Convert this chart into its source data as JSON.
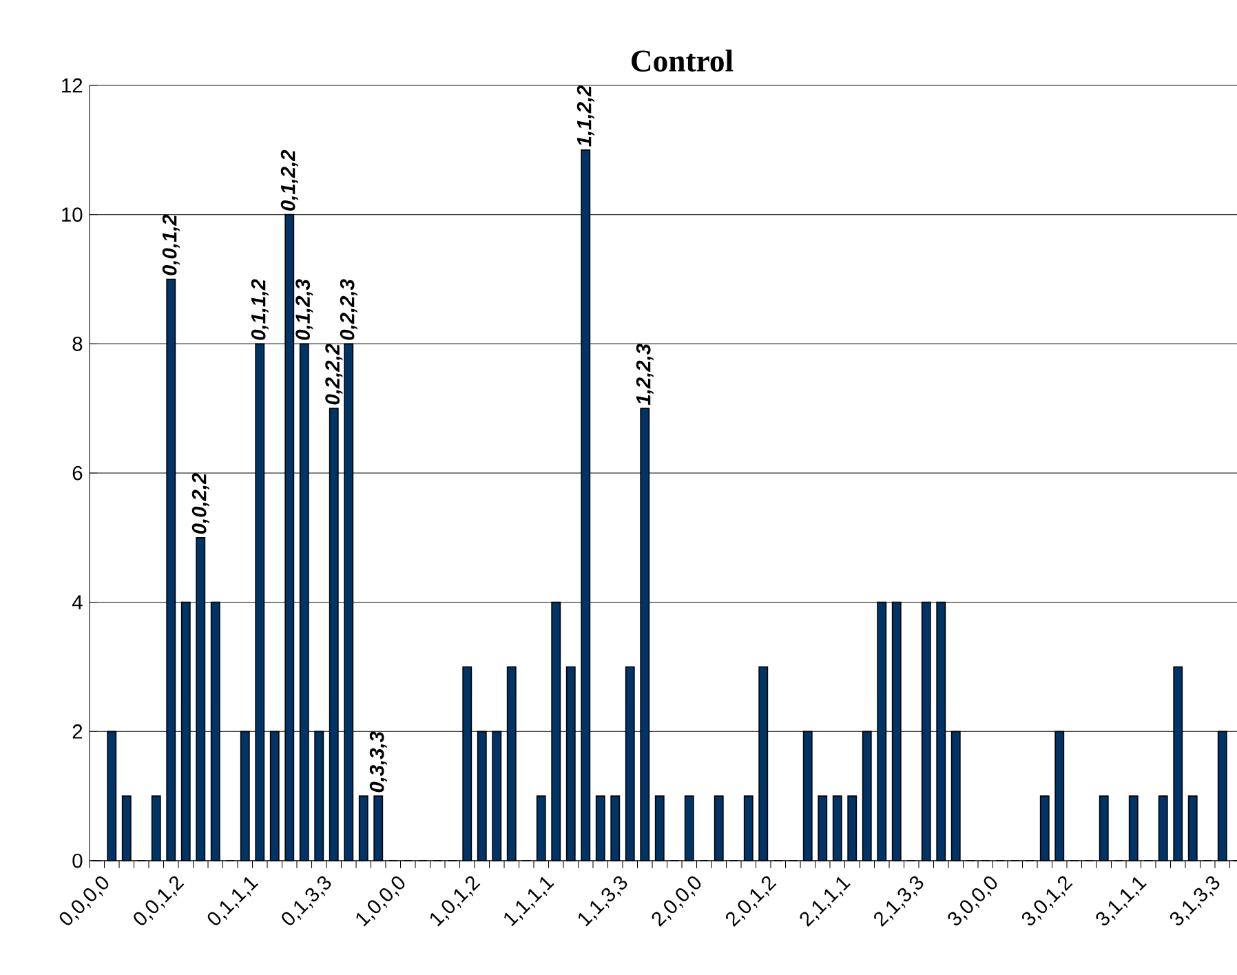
{
  "chart_data": {
    "type": "bar",
    "title": "Control",
    "categories": [
      "0,0,0,0",
      null,
      null,
      null,
      null,
      "0,0,1,2",
      null,
      null,
      null,
      null,
      "0,1,1,1",
      null,
      null,
      null,
      null,
      "0,1,3,3",
      null,
      null,
      null,
      null,
      "1,0,0,0",
      null,
      null,
      null,
      null,
      "1,0,1,2",
      null,
      null,
      null,
      null,
      "1,1,1,1",
      null,
      null,
      null,
      null,
      "1,1,3,3",
      null,
      null,
      null,
      null,
      "2,0,0,0",
      null,
      null,
      null,
      null,
      "2,0,1,2",
      null,
      null,
      null,
      null,
      "2,1,1,1",
      null,
      null,
      null,
      null,
      "2,1,3,3",
      null,
      null,
      null,
      null,
      "3,0,0,0",
      null,
      null,
      null,
      null,
      "3,0,1,2",
      null,
      null,
      null,
      null,
      "3,1,1,1",
      null,
      null,
      null,
      null,
      "3,1,3,3",
      null,
      null,
      null,
      null
    ],
    "values": [
      0,
      2,
      1,
      0,
      1,
      9,
      4,
      5,
      4,
      0,
      2,
      8,
      2,
      10,
      8,
      2,
      7,
      8,
      1,
      1,
      0,
      0,
      0,
      0,
      0,
      3,
      2,
      2,
      3,
      0,
      1,
      4,
      3,
      11,
      1,
      1,
      3,
      7,
      1,
      0,
      1,
      0,
      1,
      0,
      1,
      3,
      0,
      0,
      2,
      1,
      1,
      1,
      2,
      4,
      4,
      0,
      4,
      4,
      2,
      0,
      0,
      0,
      0,
      0,
      1,
      2,
      0,
      0,
      1,
      0,
      1,
      0,
      1,
      3,
      1,
      0,
      2,
      0,
      0,
      0
    ],
    "value_labels": [
      null,
      null,
      null,
      null,
      null,
      "0,0,1,2",
      null,
      "0,0,2,2",
      null,
      null,
      null,
      "0,1,1,2",
      null,
      "0,1,2,2",
      "0,1,2,3",
      null,
      "0,2,2,2",
      "0,2,2,3",
      null,
      "0,3,3,3",
      null,
      null,
      null,
      null,
      null,
      null,
      null,
      null,
      null,
      null,
      null,
      null,
      null,
      "1,1,2,2",
      null,
      null,
      null,
      "1,2,2,3",
      null,
      null,
      null,
      null,
      null,
      null,
      null,
      null,
      null,
      null,
      null,
      null,
      null,
      null,
      null,
      null,
      null,
      null,
      null,
      null,
      null,
      null,
      null,
      null,
      null,
      null,
      null,
      null,
      null,
      null,
      null,
      null,
      null,
      null,
      null,
      null,
      null,
      null,
      null,
      null,
      null,
      null
    ],
    "color": "#003366",
    "ylim": [
      0,
      12
    ],
    "yticks": [
      0,
      2,
      4,
      6,
      8,
      10,
      12
    ],
    "grid": "y"
  }
}
